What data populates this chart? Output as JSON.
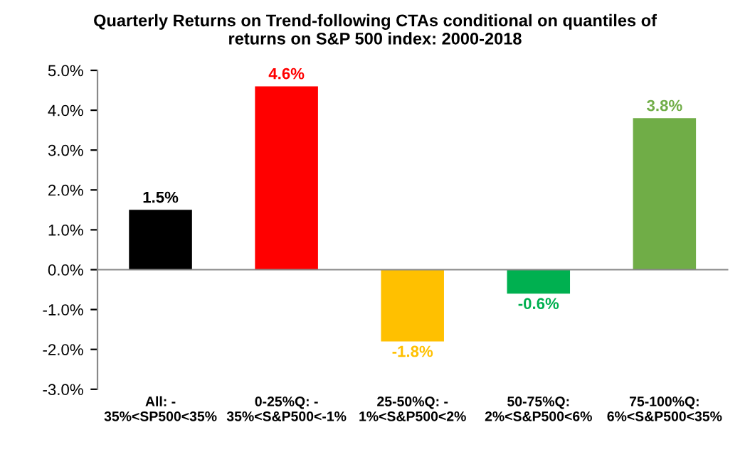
{
  "chart_data": {
    "type": "bar",
    "title": "Quarterly Returns on Trend-following CTAs conditional on quantiles of\nreturns on S&P 500 index: 2000-2018",
    "categories": [
      "All: -\n35%<SP500<35%",
      "0-25%Q: -\n35%<S&P500<-1%",
      "25-50%Q: -\n1%<S&P500<2%",
      "50-75%Q:\n2%<S&P500<6%",
      "75-100%Q:\n6%<S&P500<35%"
    ],
    "values": [
      1.5,
      4.6,
      -1.8,
      -0.6,
      3.8
    ],
    "value_labels": [
      "1.5%",
      "4.6%",
      "-1.8%",
      "-0.6%",
      "3.8%"
    ],
    "colors": [
      "#000000",
      "#ff0000",
      "#ffc000",
      "#00b050",
      "#70ad47"
    ],
    "ylim": [
      -3,
      5
    ],
    "yticks": [
      {
        "value": -3,
        "label": "-3.0%"
      },
      {
        "value": -2,
        "label": "-2.0%"
      },
      {
        "value": -1,
        "label": "-1.0%"
      },
      {
        "value": 0,
        "label": "0.0%"
      },
      {
        "value": 1,
        "label": "1.0%"
      },
      {
        "value": 2,
        "label": "2.0%"
      },
      {
        "value": 3,
        "label": "3.0%"
      },
      {
        "value": 4,
        "label": "4.0%"
      },
      {
        "value": 5,
        "label": "5.0%"
      }
    ],
    "legend": false
  }
}
